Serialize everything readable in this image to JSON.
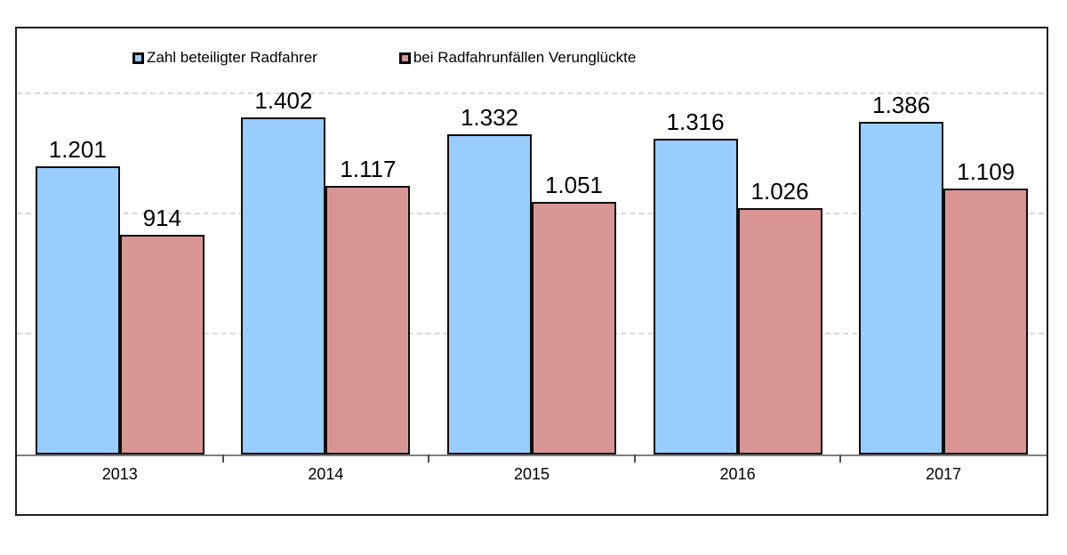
{
  "chart_data": {
    "type": "bar",
    "title": "",
    "categories": [
      "2013",
      "2014",
      "2015",
      "2016",
      "2017"
    ],
    "series": [
      {
        "name": "Zahl beteiligter Radfahrer",
        "color": "#99CCFF",
        "values": [
          1201,
          1402,
          1332,
          1316,
          1386
        ],
        "value_labels": [
          "1.201",
          "1.402",
          "1.332",
          "1.316",
          "1.386"
        ]
      },
      {
        "name": "bei Radfahrunfällen Verunglückte",
        "color": "#D99594",
        "values": [
          914,
          1117,
          1051,
          1026,
          1109
        ],
        "value_labels": [
          "914",
          "1.117",
          "1.051",
          "1.026",
          "1.109"
        ]
      }
    ],
    "xlabel": "",
    "ylabel": "",
    "ylim": [
      0,
      1780
    ],
    "gridlines": [
      500,
      1000,
      1500
    ],
    "grid": "horizontal-dashed",
    "legend_position": "top-inside",
    "value_labels_shown": true
  },
  "colors": {
    "bar_border": "#0D0D0D",
    "gridline": "#D9D9D9",
    "axis_line": "#7F7F7F",
    "chart_border": "#1F1F1F",
    "background": "#FFFFFF",
    "text": "#000000"
  }
}
